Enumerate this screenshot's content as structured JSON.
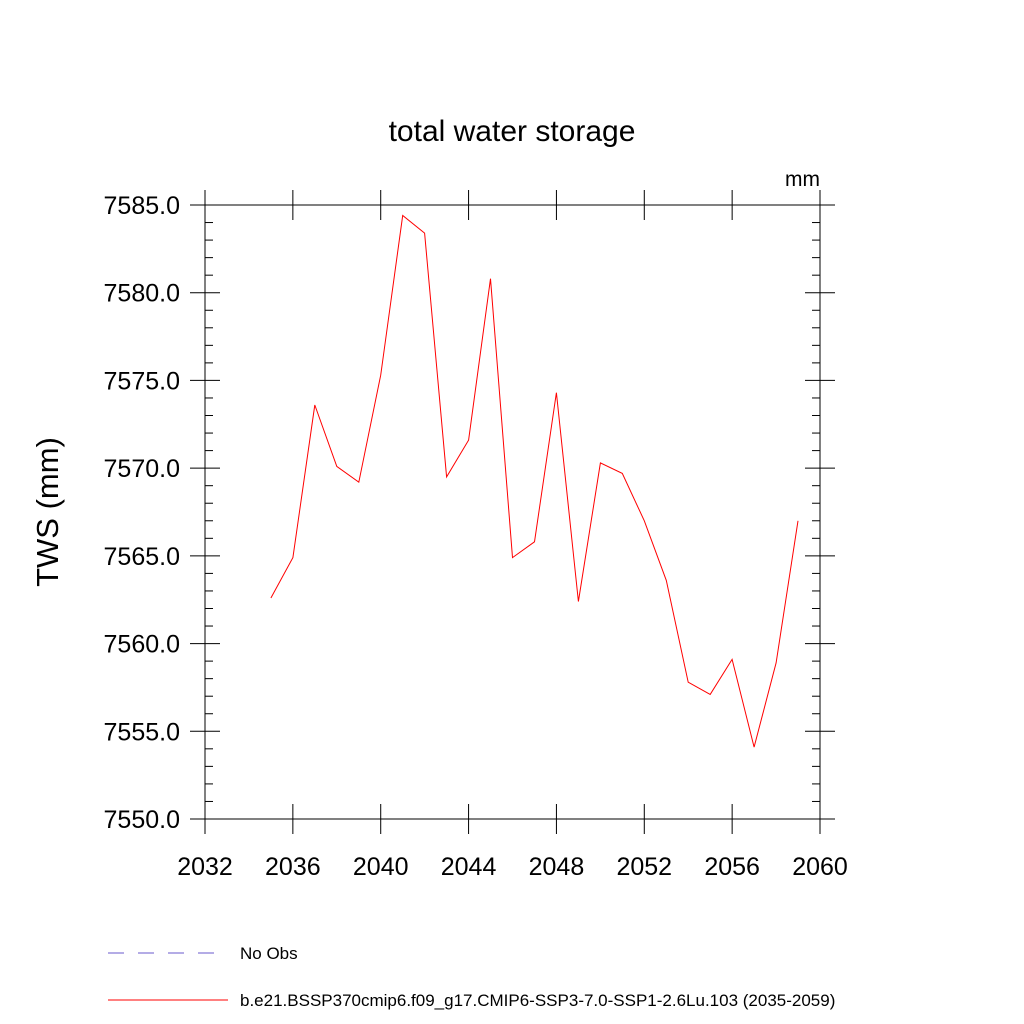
{
  "chart_data": {
    "type": "line",
    "title": "total water storage",
    "units_label": "mm",
    "xlabel": "",
    "ylabel": "TWS  (mm)",
    "xlim": [
      2032,
      2060
    ],
    "ylim": [
      7550.0,
      7585.0
    ],
    "x_ticks": [
      2032,
      2036,
      2040,
      2044,
      2048,
      2052,
      2056,
      2060
    ],
    "y_ticks": [
      "7550.0",
      "7555.0",
      "7560.0",
      "7565.0",
      "7570.0",
      "7575.0",
      "7580.0",
      "7585.0"
    ],
    "grid": false,
    "series": [
      {
        "name": "b.e21.BSSP370cmip6.f09_g17.CMIP6-SSP3-7.0-SSP1-2.6Lu.103 (2035-2059)",
        "color": "#ff0000",
        "style": "solid",
        "x": [
          2035,
          2036,
          2037,
          2038,
          2039,
          2040,
          2041,
          2042,
          2043,
          2044,
          2045,
          2046,
          2047,
          2048,
          2049,
          2050,
          2051,
          2052,
          2053,
          2054,
          2055,
          2056,
          2057,
          2058,
          2059
        ],
        "y": [
          7562.6,
          7564.9,
          7573.6,
          7570.1,
          7569.2,
          7575.3,
          7584.4,
          7583.4,
          7569.5,
          7571.6,
          7580.8,
          7564.9,
          7565.8,
          7574.3,
          7562.4,
          7570.3,
          7569.7,
          7567.0,
          7563.6,
          7557.8,
          7557.1,
          7559.1,
          7554.1,
          7558.9,
          7567.0
        ]
      }
    ],
    "legend": {
      "placement": "bottom-left",
      "entries": [
        {
          "label": "No Obs",
          "color": "#6a5acd",
          "style": "dashed"
        },
        {
          "label": "b.e21.BSSP370cmip6.f09_g17.CMIP6-SSP3-7.0-SSP1-2.6Lu.103 (2035-2059)",
          "color": "#ff0000",
          "style": "solid"
        }
      ]
    }
  }
}
